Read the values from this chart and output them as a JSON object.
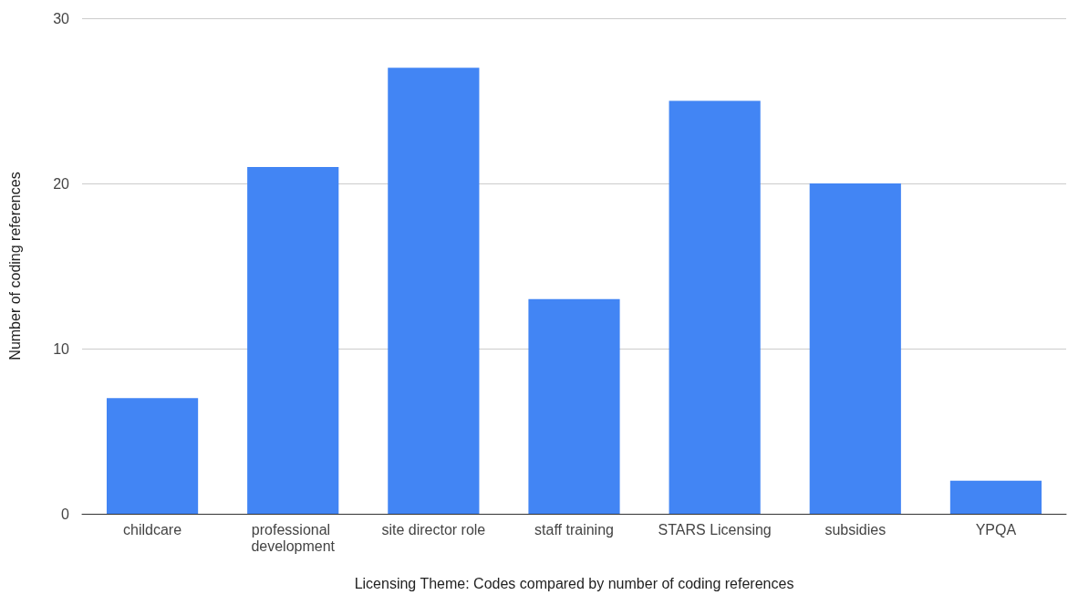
{
  "chart_data": {
    "type": "bar",
    "xlabel": "Licensing Theme: Codes compared by number of coding references",
    "ylabel": "Number of coding references",
    "categories": [
      "childcare",
      "professional development",
      "site director role",
      "staff training",
      "STARS Licensing",
      "subsidies",
      "YPQA"
    ],
    "values": [
      7,
      21,
      27,
      13,
      25,
      20,
      2
    ],
    "color": "#4285f4",
    "ylim": [
      0,
      30
    ],
    "yticks": [
      0,
      10,
      20,
      30
    ],
    "grid": "y"
  }
}
